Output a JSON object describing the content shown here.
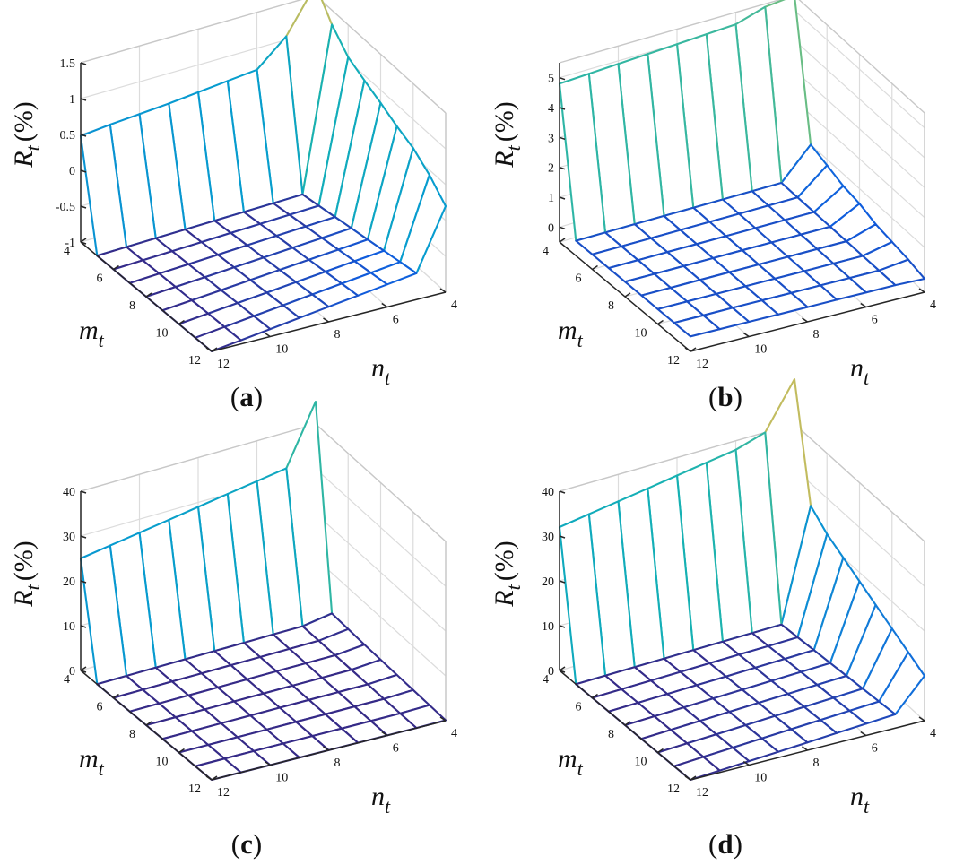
{
  "chart_data": [
    {
      "type": "surface3d",
      "panel_label": "a",
      "zlabel": "R_t (%)",
      "zlabel_main": "R",
      "zlabel_sub": "t",
      "zlabel_unit": "(%)",
      "xlabel_main": "n",
      "xlabel_sub": "t",
      "ylabel_main": "m",
      "ylabel_sub": "t",
      "x_label": "n_t",
      "y_label": "m_t",
      "x_ticks": [
        4,
        6,
        8,
        10,
        12
      ],
      "y_ticks": [
        4,
        6,
        8,
        10,
        12
      ],
      "z_ticks": [
        "-1",
        "-0.5",
        "0",
        "0.5",
        "1",
        "1.5"
      ],
      "zlim": [
        -1,
        1.5
      ],
      "n_t": [
        4,
        5,
        6,
        7,
        8,
        9,
        10,
        11,
        12
      ],
      "m_t": [
        4,
        5,
        6,
        7,
        8,
        9,
        10,
        11,
        12
      ],
      "edge_m4_over_n12_to_n4": [
        0.48,
        0.52,
        0.55,
        0.58,
        0.62,
        0.66,
        0.7,
        1.05,
        1.65
      ],
      "edge_n4_over_m4_to_m12": [
        1.65,
        1.3,
        1.05,
        0.93,
        0.82,
        0.7,
        0.6,
        0.43,
        0.2
      ],
      "interior_level_near": -1.0
    },
    {
      "type": "surface3d",
      "panel_label": "b",
      "zlabel": "R_t (%)",
      "zlabel_main": "R",
      "zlabel_sub": "t",
      "zlabel_unit": "(%)",
      "xlabel_main": "n",
      "xlabel_sub": "t",
      "ylabel_main": "m",
      "ylabel_sub": "t",
      "x_label": "n_t",
      "y_label": "m_t",
      "x_ticks": [
        4,
        6,
        8,
        10,
        12
      ],
      "y_ticks": [
        4,
        6,
        8,
        10,
        12
      ],
      "z_ticks": [
        "0",
        "1",
        "2",
        "3",
        "4",
        "5"
      ],
      "zlim": [
        -0.5,
        5.5
      ],
      "n_t": [
        4,
        5,
        6,
        7,
        8,
        9,
        10,
        11,
        12
      ],
      "m_t": [
        4,
        5,
        6,
        7,
        8,
        9,
        10,
        11,
        12
      ],
      "edge_m4_over_n12_to_n4": [
        4.8,
        4.85,
        4.9,
        4.95,
        5.0,
        5.05,
        5.1,
        5.4,
        5.5
      ],
      "edge_n4_over_m4_to_m12": [
        5.5,
        1.0,
        0.8,
        0.6,
        0.5,
        0.3,
        0.2,
        0.1,
        -0.05
      ],
      "interior_level_near": 0.0
    },
    {
      "type": "surface3d",
      "panel_label": "c",
      "zlabel": "R_t (%)",
      "zlabel_main": "R",
      "zlabel_sub": "t",
      "zlabel_unit": "(%)",
      "xlabel_main": "n",
      "xlabel_sub": "t",
      "ylabel_main": "m",
      "ylabel_sub": "t",
      "x_label": "n_t",
      "y_label": "m_t",
      "x_ticks": [
        4,
        6,
        8,
        10,
        12
      ],
      "y_ticks": [
        4,
        6,
        8,
        10,
        12
      ],
      "z_ticks": [
        "0",
        "10",
        "20",
        "30",
        "40"
      ],
      "zlim": [
        0,
        40
      ],
      "n_t": [
        4,
        5,
        6,
        7,
        8,
        9,
        10,
        11,
        12
      ],
      "m_t": [
        4,
        5,
        6,
        7,
        8,
        9,
        10,
        11,
        12
      ],
      "edge_m4_over_n12_to_n4": [
        25,
        26,
        27,
        28,
        29,
        30,
        31,
        32,
        45
      ],
      "edge_n4_over_m4_to_m12": [
        45,
        1.0,
        0.8,
        0.6,
        0.5,
        0.4,
        0.3,
        0.2,
        0.1
      ],
      "interior_level_near": 0.0
    },
    {
      "type": "surface3d",
      "panel_label": "d",
      "zlabel": "R_t (%)",
      "zlabel_main": "R",
      "zlabel_sub": "t",
      "zlabel_unit": "(%)",
      "xlabel_main": "n",
      "xlabel_sub": "t",
      "ylabel_main": "m",
      "ylabel_sub": "t",
      "x_label": "n_t",
      "y_label": "m_t",
      "x_ticks": [
        4,
        6,
        8,
        10,
        12
      ],
      "y_ticks": [
        4,
        6,
        8,
        10,
        12
      ],
      "z_ticks": [
        "0",
        "10",
        "20",
        "30",
        "40"
      ],
      "zlim": [
        0,
        40
      ],
      "n_t": [
        4,
        5,
        6,
        7,
        8,
        9,
        10,
        11,
        12
      ],
      "m_t": [
        4,
        5,
        6,
        7,
        8,
        9,
        10,
        11,
        12
      ],
      "edge_m4_over_n12_to_n4": [
        32,
        33,
        34,
        35,
        36,
        37,
        38,
        40,
        50
      ],
      "edge_n4_over_m4_to_m12": [
        50,
        25,
        22,
        20,
        18,
        16,
        14,
        12,
        10
      ],
      "interior_level_near": 0.0
    }
  ]
}
